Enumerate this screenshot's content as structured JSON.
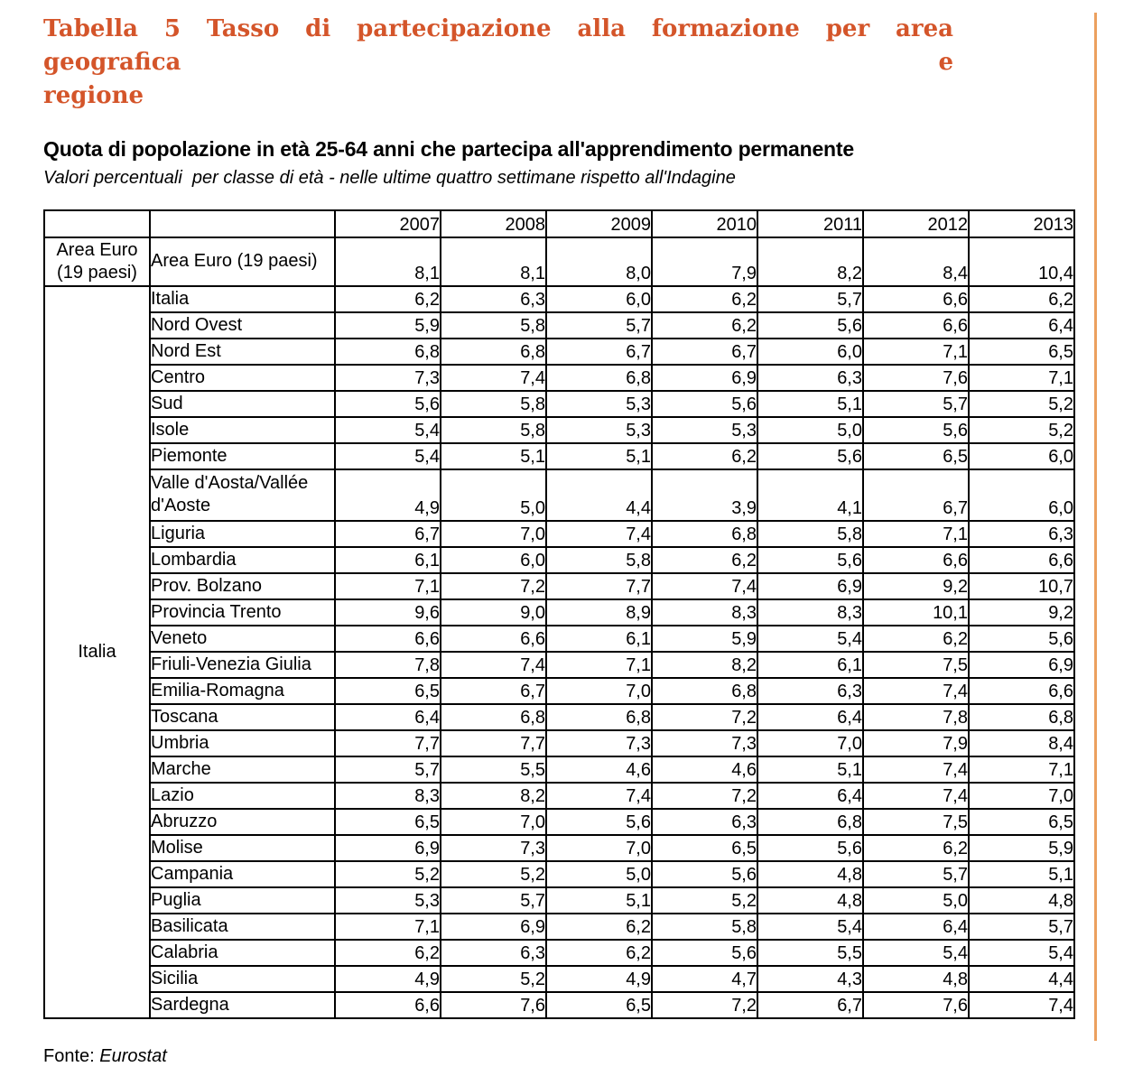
{
  "page": {
    "title_lines": [
      "Tabella 5 Tasso di partecipazione alla formazione per area geografica e",
      "regione"
    ],
    "subtitle_bold": "Quota di popolazione in età 25-64 anni che partecipa all'apprendimento permanente",
    "subtitle_italic": "Valori percentuali  per classe di età - nelle ultime quattro settimane rispetto all'Indagine",
    "source_label": "Fonte:",
    "source_value": "Eurostat",
    "title_color": "#d4552a",
    "right_rule_color": "#eca05f"
  },
  "chart_data": {
    "type": "table",
    "col_headers": [
      "2007",
      "2008",
      "2009",
      "2010",
      "2011",
      "2012",
      "2013"
    ],
    "row_groups": [
      {
        "label": "Area Euro (19 paesi)",
        "rows": [
          {
            "label": "Area Euro (19 paesi)",
            "tall": true,
            "values": [
              "8,1",
              "8,1",
              "8,0",
              "7,9",
              "8,2",
              "8,4",
              "10,4"
            ]
          }
        ]
      },
      {
        "label": "Italia",
        "rows": [
          {
            "label": "Italia",
            "values": [
              "6,2",
              "6,3",
              "6,0",
              "6,2",
              "5,7",
              "6,6",
              "6,2"
            ]
          },
          {
            "label": "Nord Ovest",
            "values": [
              "5,9",
              "5,8",
              "5,7",
              "6,2",
              "5,6",
              "6,6",
              "6,4"
            ]
          },
          {
            "label": "Nord Est",
            "values": [
              "6,8",
              "6,8",
              "6,7",
              "6,7",
              "6,0",
              "7,1",
              "6,5"
            ]
          },
          {
            "label": "Centro",
            "values": [
              "7,3",
              "7,4",
              "6,8",
              "6,9",
              "6,3",
              "7,6",
              "7,1"
            ]
          },
          {
            "label": "Sud",
            "values": [
              "5,6",
              "5,8",
              "5,3",
              "5,6",
              "5,1",
              "5,7",
              "5,2"
            ]
          },
          {
            "label": "Isole",
            "values": [
              "5,4",
              "5,8",
              "5,3",
              "5,3",
              "5,0",
              "5,6",
              "5,2"
            ]
          },
          {
            "label": "Piemonte",
            "thick_top": true,
            "values": [
              "5,4",
              "5,1",
              "5,1",
              "6,2",
              "5,6",
              "6,5",
              "6,0"
            ]
          },
          {
            "label": "Valle d'Aosta/Vallée d'Aoste",
            "tall": true,
            "values": [
              "4,9",
              "5,0",
              "4,4",
              "3,9",
              "4,1",
              "6,7",
              "6,0"
            ]
          },
          {
            "label": "Liguria",
            "values": [
              "6,7",
              "7,0",
              "7,4",
              "6,8",
              "5,8",
              "7,1",
              "6,3"
            ]
          },
          {
            "label": "Lombardia",
            "values": [
              "6,1",
              "6,0",
              "5,8",
              "6,2",
              "5,6",
              "6,6",
              "6,6"
            ]
          },
          {
            "label": "Prov. Bolzano",
            "values": [
              "7,1",
              "7,2",
              "7,7",
              "7,4",
              "6,9",
              "9,2",
              "10,7"
            ]
          },
          {
            "label": "Provincia Trento",
            "values": [
              "9,6",
              "9,0",
              "8,9",
              "8,3",
              "8,3",
              "10,1",
              "9,2"
            ]
          },
          {
            "label": "Veneto",
            "values": [
              "6,6",
              "6,6",
              "6,1",
              "5,9",
              "5,4",
              "6,2",
              "5,6"
            ]
          },
          {
            "label": "Friuli-Venezia Giulia",
            "values": [
              "7,8",
              "7,4",
              "7,1",
              "8,2",
              "6,1",
              "7,5",
              "6,9"
            ]
          },
          {
            "label": "Emilia-Romagna",
            "values": [
              "6,5",
              "6,7",
              "7,0",
              "6,8",
              "6,3",
              "7,4",
              "6,6"
            ]
          },
          {
            "label": "Toscana",
            "values": [
              "6,4",
              "6,8",
              "6,8",
              "7,2",
              "6,4",
              "7,8",
              "6,8"
            ]
          },
          {
            "label": "Umbria",
            "values": [
              "7,7",
              "7,7",
              "7,3",
              "7,3",
              "7,0",
              "7,9",
              "8,4"
            ]
          },
          {
            "label": "Marche",
            "values": [
              "5,7",
              "5,5",
              "4,6",
              "4,6",
              "5,1",
              "7,4",
              "7,1"
            ]
          },
          {
            "label": "Lazio",
            "values": [
              "8,3",
              "8,2",
              "7,4",
              "7,2",
              "6,4",
              "7,4",
              "7,0"
            ]
          },
          {
            "label": "Abruzzo",
            "values": [
              "6,5",
              "7,0",
              "5,6",
              "6,3",
              "6,8",
              "7,5",
              "6,5"
            ]
          },
          {
            "label": "Molise",
            "values": [
              "6,9",
              "7,3",
              "7,0",
              "6,5",
              "5,6",
              "6,2",
              "5,9"
            ]
          },
          {
            "label": "Campania",
            "values": [
              "5,2",
              "5,2",
              "5,0",
              "5,6",
              "4,8",
              "5,7",
              "5,1"
            ]
          },
          {
            "label": "Puglia",
            "values": [
              "5,3",
              "5,7",
              "5,1",
              "5,2",
              "4,8",
              "5,0",
              "4,8"
            ]
          },
          {
            "label": "Basilicata",
            "values": [
              "7,1",
              "6,9",
              "6,2",
              "5,8",
              "5,4",
              "6,4",
              "5,7"
            ]
          },
          {
            "label": "Calabria",
            "values": [
              "6,2",
              "6,3",
              "6,2",
              "5,6",
              "5,5",
              "5,4",
              "5,4"
            ]
          },
          {
            "label": "Sicilia",
            "values": [
              "4,9",
              "5,2",
              "4,9",
              "4,7",
              "4,3",
              "4,8",
              "4,4"
            ]
          },
          {
            "label": "Sardegna",
            "values": [
              "6,6",
              "7,6",
              "6,5",
              "7,2",
              "6,7",
              "7,6",
              "7,4"
            ]
          }
        ]
      }
    ]
  }
}
